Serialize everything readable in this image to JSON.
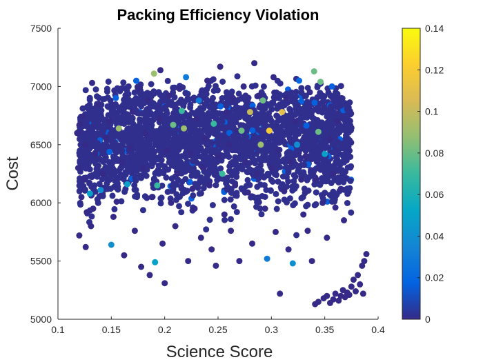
{
  "chart_data": {
    "type": "scatter",
    "title": "Packing Efficiency Violation",
    "xlabel": "Science Score",
    "ylabel": "Cost",
    "xlim": [
      0.1,
      0.4
    ],
    "ylim": [
      5000,
      7500
    ],
    "xticks": [
      "0.1",
      "0.15",
      "0.2",
      "0.25",
      "0.3",
      "0.35",
      "0.4"
    ],
    "yticks": [
      "5000",
      "5500",
      "6000",
      "6500",
      "7000",
      "7500"
    ],
    "grid": false,
    "colormap": "parula",
    "colorbar": {
      "range": [
        0,
        0.14
      ],
      "ticks": [
        "0",
        "0.02",
        "0.04",
        "0.06",
        "0.08",
        "0.1",
        "0.12",
        "0.14"
      ]
    },
    "points": [
      {
        "x": 0.118,
        "y": 6600,
        "c": 0
      },
      {
        "x": 0.121,
        "y": 6680,
        "c": 0
      },
      {
        "x": 0.123,
        "y": 6740,
        "c": 0
      },
      {
        "x": 0.126,
        "y": 6500,
        "c": 0
      },
      {
        "x": 0.119,
        "y": 6300,
        "c": 0
      },
      {
        "x": 0.125,
        "y": 6200,
        "c": 0
      },
      {
        "x": 0.122,
        "y": 6050,
        "c": 0
      },
      {
        "x": 0.127,
        "y": 5920,
        "c": 0
      },
      {
        "x": 0.12,
        "y": 5720,
        "c": 0
      },
      {
        "x": 0.126,
        "y": 5620,
        "c": 0
      },
      {
        "x": 0.131,
        "y": 5800,
        "c": 0
      },
      {
        "x": 0.133,
        "y": 5950,
        "c": 0
      },
      {
        "x": 0.13,
        "y": 6080,
        "c": 0.05
      },
      {
        "x": 0.135,
        "y": 6420,
        "c": 0
      },
      {
        "x": 0.132,
        "y": 7030,
        "c": 0
      },
      {
        "x": 0.138,
        "y": 6850,
        "c": 0
      },
      {
        "x": 0.14,
        "y": 6110,
        "c": 0.04
      },
      {
        "x": 0.142,
        "y": 6250,
        "c": 0
      },
      {
        "x": 0.145,
        "y": 6560,
        "c": 0
      },
      {
        "x": 0.148,
        "y": 6700,
        "c": 0
      },
      {
        "x": 0.15,
        "y": 5640,
        "c": 0.04
      },
      {
        "x": 0.152,
        "y": 5880,
        "c": 0
      },
      {
        "x": 0.155,
        "y": 6010,
        "c": 0
      },
      {
        "x": 0.157,
        "y": 6640,
        "c": 0.09
      },
      {
        "x": 0.16,
        "y": 6350,
        "c": 0
      },
      {
        "x": 0.162,
        "y": 5550,
        "c": 0
      },
      {
        "x": 0.165,
        "y": 6160,
        "c": 0.05
      },
      {
        "x": 0.168,
        "y": 6470,
        "c": 0
      },
      {
        "x": 0.17,
        "y": 6780,
        "c": 0
      },
      {
        "x": 0.172,
        "y": 5760,
        "c": 0
      },
      {
        "x": 0.175,
        "y": 6980,
        "c": 0
      },
      {
        "x": 0.178,
        "y": 5450,
        "c": 0
      },
      {
        "x": 0.18,
        "y": 6300,
        "c": 0
      },
      {
        "x": 0.182,
        "y": 6600,
        "c": 0
      },
      {
        "x": 0.184,
        "y": 6880,
        "c": 0
      },
      {
        "x": 0.186,
        "y": 5380,
        "c": 0
      },
      {
        "x": 0.188,
        "y": 6050,
        "c": 0
      },
      {
        "x": 0.19,
        "y": 7110,
        "c": 0.09
      },
      {
        "x": 0.191,
        "y": 5490,
        "c": 0.05
      },
      {
        "x": 0.193,
        "y": 6150,
        "c": 0.07
      },
      {
        "x": 0.195,
        "y": 6720,
        "c": 0
      },
      {
        "x": 0.196,
        "y": 7140,
        "c": 0
      },
      {
        "x": 0.198,
        "y": 5650,
        "c": 0
      },
      {
        "x": 0.2,
        "y": 5310,
        "c": 0
      },
      {
        "x": 0.202,
        "y": 6450,
        "c": 0
      },
      {
        "x": 0.204,
        "y": 6920,
        "c": 0
      },
      {
        "x": 0.206,
        "y": 6000,
        "c": 0
      },
      {
        "x": 0.208,
        "y": 6670,
        "c": 0.08
      },
      {
        "x": 0.21,
        "y": 5800,
        "c": 0
      },
      {
        "x": 0.212,
        "y": 6250,
        "c": 0
      },
      {
        "x": 0.214,
        "y": 6980,
        "c": 0
      },
      {
        "x": 0.216,
        "y": 6790,
        "c": 0.07
      },
      {
        "x": 0.218,
        "y": 6640,
        "c": 0.09
      },
      {
        "x": 0.22,
        "y": 7080,
        "c": 0.03
      },
      {
        "x": 0.222,
        "y": 5500,
        "c": 0
      },
      {
        "x": 0.224,
        "y": 6430,
        "c": 0
      },
      {
        "x": 0.226,
        "y": 6120,
        "c": 0
      },
      {
        "x": 0.228,
        "y": 5950,
        "c": 0
      },
      {
        "x": 0.23,
        "y": 6720,
        "c": 0
      },
      {
        "x": 0.232,
        "y": 6880,
        "c": 0.03
      },
      {
        "x": 0.234,
        "y": 5700,
        "c": 0
      },
      {
        "x": 0.236,
        "y": 6300,
        "c": 0
      },
      {
        "x": 0.238,
        "y": 6550,
        "c": 0
      },
      {
        "x": 0.24,
        "y": 7050,
        "c": 0
      },
      {
        "x": 0.242,
        "y": 6150,
        "c": 0
      },
      {
        "x": 0.244,
        "y": 5600,
        "c": 0
      },
      {
        "x": 0.246,
        "y": 6680,
        "c": 0.07
      },
      {
        "x": 0.248,
        "y": 5460,
        "c": 0
      },
      {
        "x": 0.25,
        "y": 6400,
        "c": 0
      },
      {
        "x": 0.252,
        "y": 7170,
        "c": 0
      },
      {
        "x": 0.254,
        "y": 6250,
        "c": 0.07
      },
      {
        "x": 0.256,
        "y": 5900,
        "c": 0
      },
      {
        "x": 0.258,
        "y": 6780,
        "c": 0
      },
      {
        "x": 0.26,
        "y": 6500,
        "c": 0
      },
      {
        "x": 0.262,
        "y": 5760,
        "c": 0
      },
      {
        "x": 0.264,
        "y": 6900,
        "c": 0
      },
      {
        "x": 0.266,
        "y": 6150,
        "c": 0
      },
      {
        "x": 0.268,
        "y": 6620,
        "c": 0
      },
      {
        "x": 0.27,
        "y": 5500,
        "c": 0
      },
      {
        "x": 0.272,
        "y": 6620,
        "c": 0.08
      },
      {
        "x": 0.274,
        "y": 7000,
        "c": 0
      },
      {
        "x": 0.276,
        "y": 6350,
        "c": 0
      },
      {
        "x": 0.278,
        "y": 6090,
        "c": 0
      },
      {
        "x": 0.28,
        "y": 6780,
        "c": 0.1
      },
      {
        "x": 0.282,
        "y": 5650,
        "c": 0
      },
      {
        "x": 0.284,
        "y": 7200,
        "c": 0
      },
      {
        "x": 0.286,
        "y": 6250,
        "c": 0
      },
      {
        "x": 0.288,
        "y": 6920,
        "c": 0
      },
      {
        "x": 0.29,
        "y": 6500,
        "c": 0.09
      },
      {
        "x": 0.292,
        "y": 6880,
        "c": 0.08
      },
      {
        "x": 0.294,
        "y": 5950,
        "c": 0
      },
      {
        "x": 0.296,
        "y": 5520,
        "c": 0.03
      },
      {
        "x": 0.298,
        "y": 6620,
        "c": 0.12
      },
      {
        "x": 0.3,
        "y": 6300,
        "c": 0
      },
      {
        "x": 0.302,
        "y": 7080,
        "c": 0
      },
      {
        "x": 0.304,
        "y": 5750,
        "c": 0
      },
      {
        "x": 0.306,
        "y": 6450,
        "c": 0
      },
      {
        "x": 0.308,
        "y": 5220,
        "c": 0
      },
      {
        "x": 0.31,
        "y": 6780,
        "c": 0.11
      },
      {
        "x": 0.312,
        "y": 6100,
        "c": 0
      },
      {
        "x": 0.314,
        "y": 6900,
        "c": 0
      },
      {
        "x": 0.316,
        "y": 5600,
        "c": 0
      },
      {
        "x": 0.318,
        "y": 6350,
        "c": 0
      },
      {
        "x": 0.32,
        "y": 5480,
        "c": 0.04
      },
      {
        "x": 0.322,
        "y": 6700,
        "c": 0
      },
      {
        "x": 0.324,
        "y": 6500,
        "c": 0.04
      },
      {
        "x": 0.326,
        "y": 7050,
        "c": 0.02
      },
      {
        "x": 0.328,
        "y": 6200,
        "c": 0
      },
      {
        "x": 0.33,
        "y": 5900,
        "c": 0
      },
      {
        "x": 0.332,
        "y": 6400,
        "c": 0
      },
      {
        "x": 0.334,
        "y": 5760,
        "c": 0
      },
      {
        "x": 0.336,
        "y": 6950,
        "c": 0
      },
      {
        "x": 0.338,
        "y": 5500,
        "c": 0
      },
      {
        "x": 0.34,
        "y": 7130,
        "c": 0.08
      },
      {
        "x": 0.342,
        "y": 6200,
        "c": 0
      },
      {
        "x": 0.344,
        "y": 6610,
        "c": 0.08
      },
      {
        "x": 0.346,
        "y": 7040,
        "c": 0.08
      },
      {
        "x": 0.348,
        "y": 6000,
        "c": 0
      },
      {
        "x": 0.35,
        "y": 6420,
        "c": 0.05
      },
      {
        "x": 0.352,
        "y": 5700,
        "c": 0
      },
      {
        "x": 0.355,
        "y": 6550,
        "c": 0
      },
      {
        "x": 0.358,
        "y": 6250,
        "c": 0
      },
      {
        "x": 0.36,
        "y": 5960,
        "c": 0
      },
      {
        "x": 0.362,
        "y": 6700,
        "c": 0
      },
      {
        "x": 0.365,
        "y": 6120,
        "c": 0
      },
      {
        "x": 0.368,
        "y": 5850,
        "c": 0
      },
      {
        "x": 0.349,
        "y": 5180,
        "c": 0
      },
      {
        "x": 0.352,
        "y": 5200,
        "c": 0
      },
      {
        "x": 0.355,
        "y": 5140,
        "c": 0
      },
      {
        "x": 0.358,
        "y": 5170,
        "c": 0
      },
      {
        "x": 0.36,
        "y": 5220,
        "c": 0
      },
      {
        "x": 0.363,
        "y": 5160,
        "c": 0
      },
      {
        "x": 0.365,
        "y": 5200,
        "c": 0
      },
      {
        "x": 0.367,
        "y": 5250,
        "c": 0
      },
      {
        "x": 0.369,
        "y": 5190,
        "c": 0
      },
      {
        "x": 0.371,
        "y": 5230,
        "c": 0
      },
      {
        "x": 0.373,
        "y": 5210,
        "c": 0
      },
      {
        "x": 0.375,
        "y": 5280,
        "c": 0
      },
      {
        "x": 0.377,
        "y": 5340,
        "c": 0
      },
      {
        "x": 0.379,
        "y": 5240,
        "c": 0
      },
      {
        "x": 0.381,
        "y": 5380,
        "c": 0
      },
      {
        "x": 0.383,
        "y": 5300,
        "c": 0
      },
      {
        "x": 0.385,
        "y": 5460,
        "c": 0
      },
      {
        "x": 0.387,
        "y": 5500,
        "c": 0
      },
      {
        "x": 0.389,
        "y": 5560,
        "c": 0
      },
      {
        "x": 0.386,
        "y": 5220,
        "c": 0
      },
      {
        "x": 0.341,
        "y": 5130,
        "c": 0
      },
      {
        "x": 0.344,
        "y": 5150,
        "c": 0
      }
    ]
  }
}
